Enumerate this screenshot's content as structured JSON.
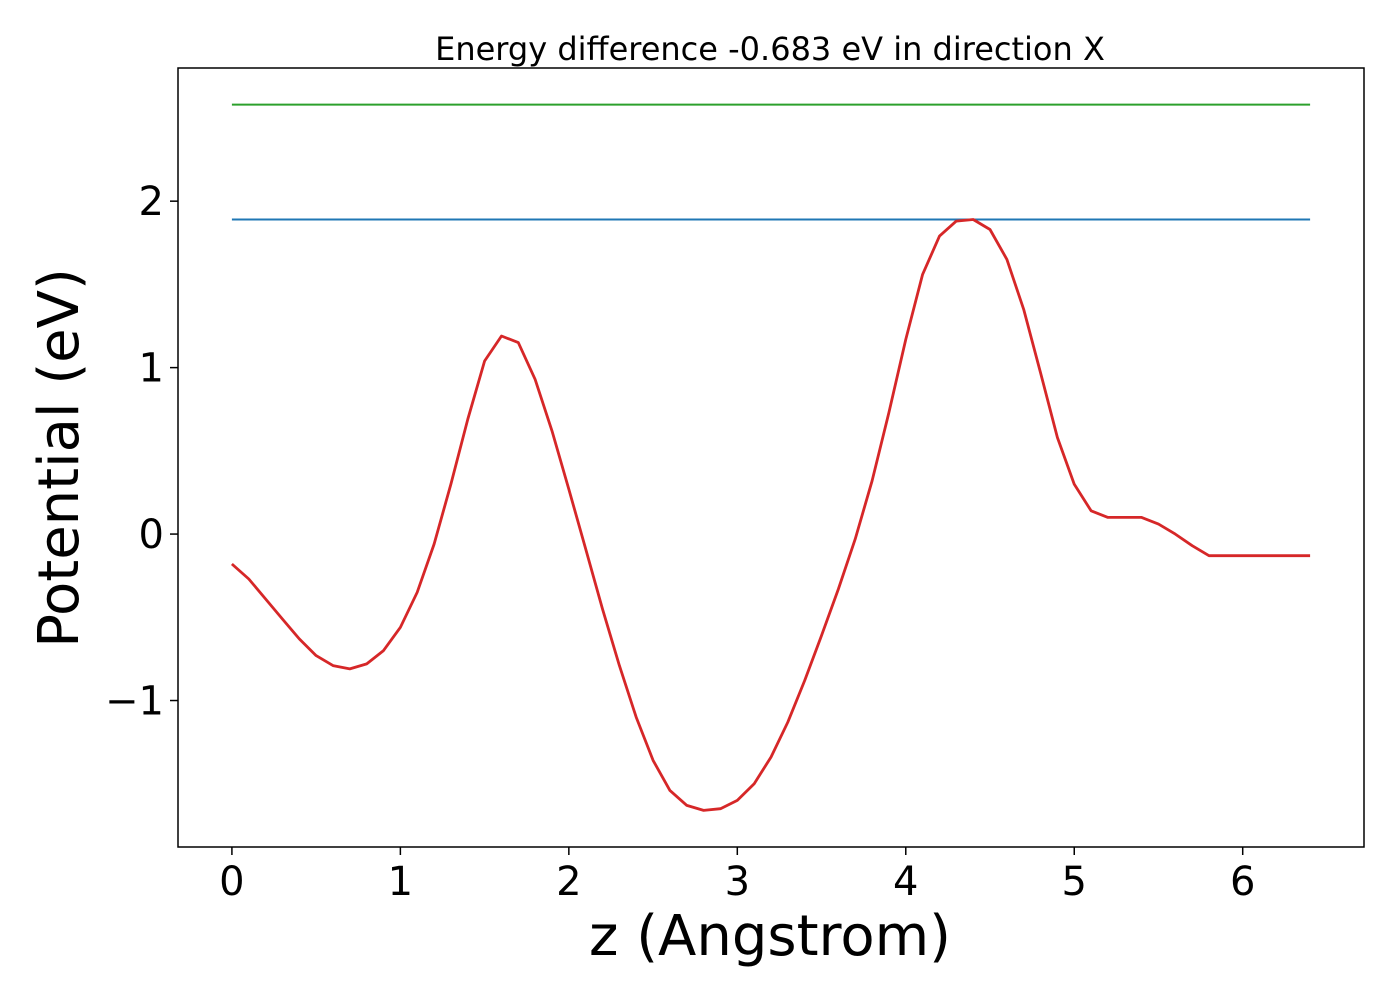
{
  "chart_data": {
    "type": "line",
    "title": "Energy difference -0.683 eV in direction X",
    "xlabel": "z (Angstrom)",
    "ylabel": "Potential (eV)",
    "xlim": [
      -0.32,
      6.72
    ],
    "ylim": [
      -1.88,
      2.8
    ],
    "xticks": [
      0,
      1,
      2,
      3,
      4,
      5,
      6
    ],
    "yticks": [
      -1,
      0,
      1,
      2
    ],
    "ytick_labels": [
      "−1",
      "0",
      "1",
      "2"
    ],
    "grid": false,
    "series": [
      {
        "color": "#2ca02c",
        "x": [
          0,
          6.4
        ],
        "y": [
          2.58,
          2.58
        ]
      },
      {
        "color": "#1f77b4",
        "x": [
          0,
          6.4
        ],
        "y": [
          1.89,
          1.89
        ]
      },
      {
        "color": "#d62728",
        "x": [
          0,
          0.1,
          0.2,
          0.3,
          0.4,
          0.5,
          0.6,
          0.7,
          0.8,
          0.9,
          1.0,
          1.1,
          1.2,
          1.3,
          1.4,
          1.5,
          1.6,
          1.7,
          1.8,
          1.9,
          2.0,
          2.1,
          2.2,
          2.3,
          2.4,
          2.5,
          2.6,
          2.7,
          2.8,
          2.9,
          3.0,
          3.1,
          3.2,
          3.3,
          3.4,
          3.5,
          3.6,
          3.7,
          3.8,
          3.9,
          4.0,
          4.1,
          4.2,
          4.3,
          4.4,
          4.5,
          4.6,
          4.7,
          4.8,
          4.9,
          5.0,
          5.1,
          5.2,
          5.3,
          5.4,
          5.5,
          5.6,
          5.7,
          5.8,
          5.9,
          6.0,
          6.1,
          6.2,
          6.3,
          6.4
        ],
        "y": [
          -0.18,
          -0.27,
          -0.39,
          -0.51,
          -0.63,
          -0.73,
          -0.79,
          -0.81,
          -0.78,
          -0.7,
          -0.56,
          -0.35,
          -0.06,
          0.3,
          0.69,
          1.04,
          1.19,
          1.15,
          0.93,
          0.62,
          0.27,
          -0.09,
          -0.45,
          -0.79,
          -1.1,
          -1.36,
          -1.54,
          -1.63,
          -1.66,
          -1.65,
          -1.6,
          -1.5,
          -1.34,
          -1.13,
          -0.88,
          -0.61,
          -0.33,
          -0.03,
          0.32,
          0.73,
          1.17,
          1.56,
          1.79,
          1.88,
          1.89,
          1.83,
          1.65,
          1.35,
          0.97,
          0.58,
          0.3,
          0.14,
          0.1,
          0.1,
          0.1,
          0.06,
          0.0,
          -0.07,
          -0.13,
          -0.13,
          -0.13,
          -0.13,
          -0.13,
          -0.13,
          -0.13
        ]
      }
    ]
  }
}
